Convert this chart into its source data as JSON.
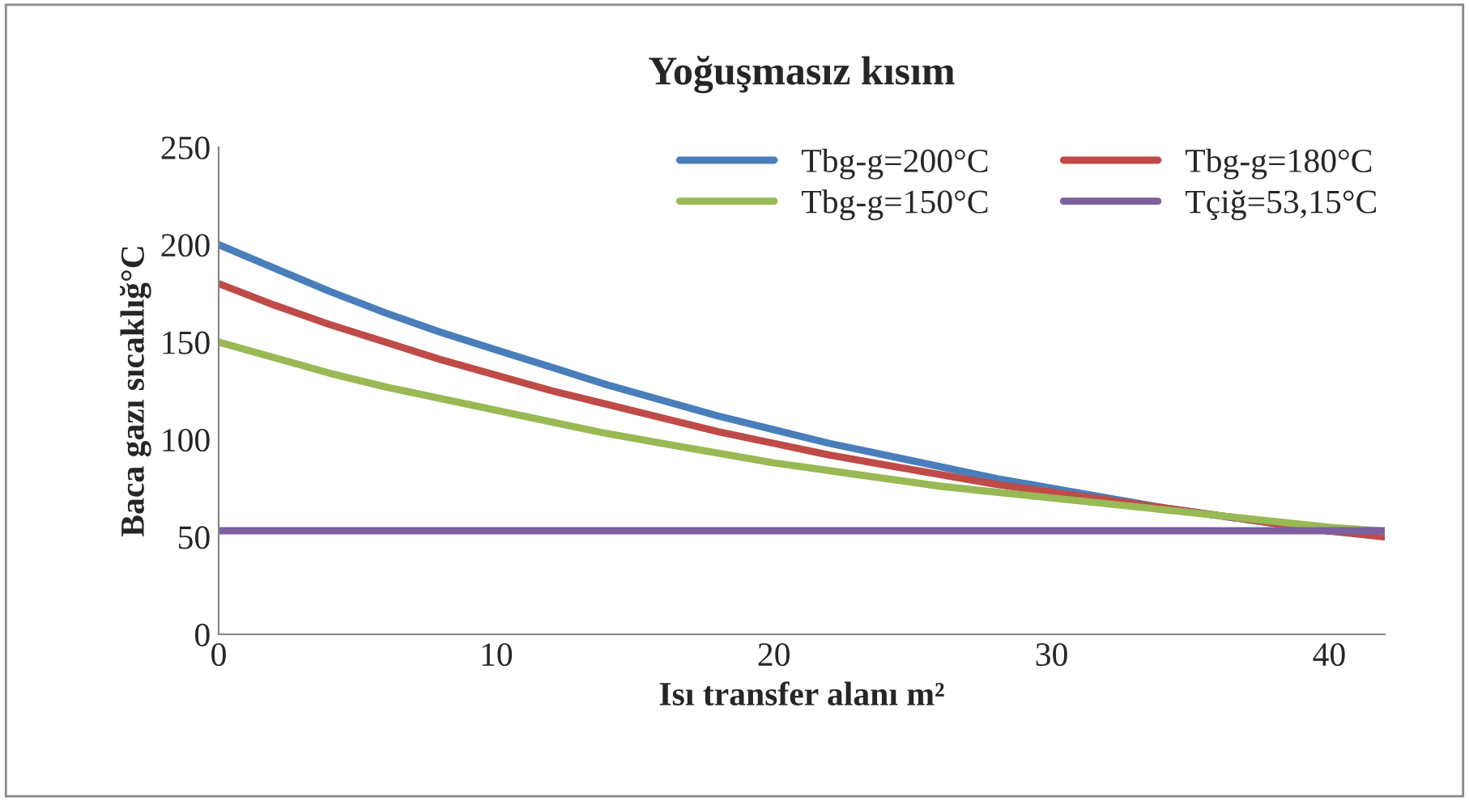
{
  "chart_data": {
    "type": "line",
    "title": "Yoğuşmasız kısım",
    "xlabel": "Isı transfer alanı m²",
    "ylabel": "Baca gazı sıcaklığ°C",
    "x": [
      0,
      2,
      4,
      6,
      8,
      10,
      12,
      14,
      16,
      18,
      20,
      22,
      24,
      26,
      28,
      30,
      32,
      34,
      36,
      38,
      40,
      42
    ],
    "series": [
      {
        "name": "Tbg-g=200°C",
        "color": "#4a7ebb",
        "values": [
          200,
          188,
          176,
          165,
          155,
          146,
          137,
          128,
          120,
          112,
          105,
          98,
          92,
          86,
          80,
          75,
          70,
          65,
          61,
          57,
          53,
          51
        ]
      },
      {
        "name": "Tbg-g=180°C",
        "color": "#be4b48",
        "values": [
          180,
          169,
          159,
          150,
          141,
          133,
          125,
          118,
          111,
          104,
          98,
          92,
          87,
          82,
          77,
          73,
          69,
          65,
          61,
          57,
          53,
          50
        ]
      },
      {
        "name": "Tbg-g=150°C",
        "color": "#98b954",
        "values": [
          150,
          142,
          134,
          127,
          121,
          115,
          109,
          103,
          98,
          93,
          88,
          84,
          80,
          76,
          73,
          70,
          67,
          64,
          61,
          58,
          55,
          53
        ]
      },
      {
        "name": "Tçiğ=53,15°C",
        "color": "#7d60a0",
        "x": [
          0,
          42
        ],
        "values": [
          53.15,
          53.15
        ]
      }
    ],
    "xlim": [
      0,
      42
    ],
    "xticks": [
      0,
      10,
      20,
      30,
      40
    ],
    "ylim": [
      0,
      250
    ],
    "yticks": [
      0,
      50,
      100,
      150,
      200,
      250
    ],
    "grid": false,
    "legend": "top right",
    "marker": "none",
    "line_style": "solid"
  }
}
